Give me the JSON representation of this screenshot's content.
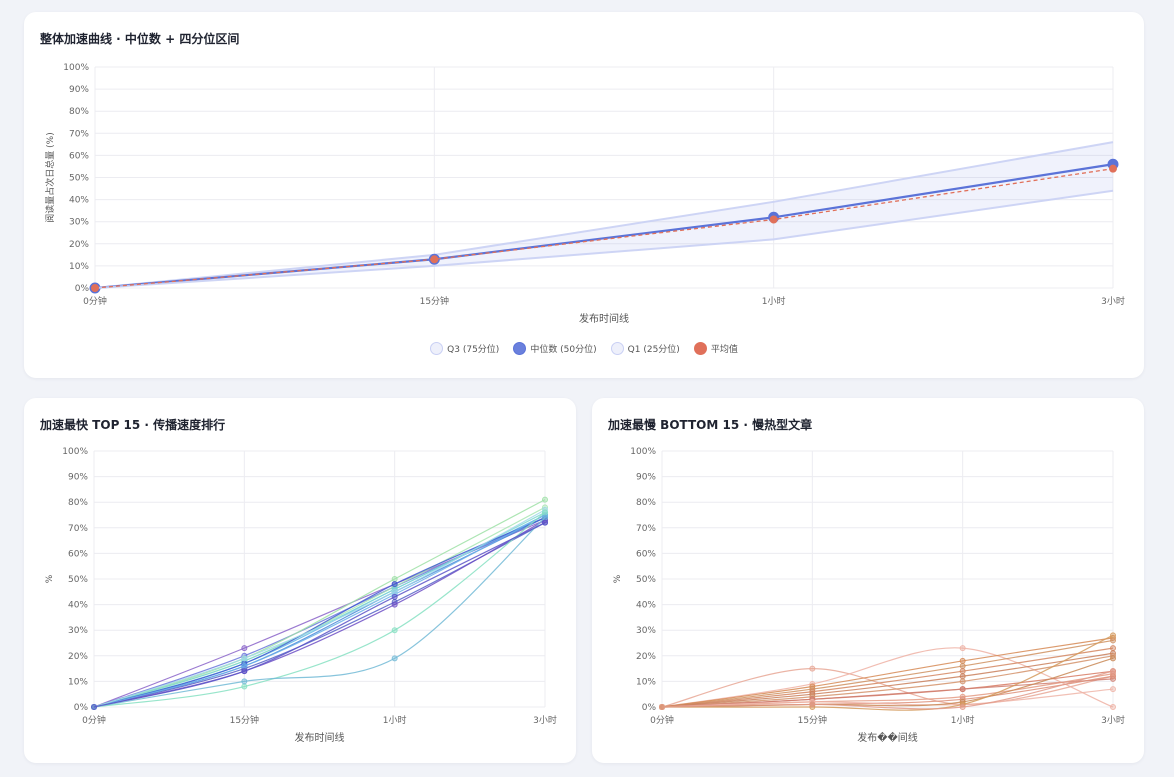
{
  "top_card": {
    "title": "整体加速曲线 · 中位数 + 四分位区间"
  },
  "left_card": {
    "title": "加速最快 TOP 15 · 传播速度排行"
  },
  "right_card": {
    "title": "加速最慢 BOTTOM 15 · 慢热型文章"
  },
  "legend": [
    {
      "label": "Q3 (75分位)",
      "color": "#c9d0f4",
      "fill": "#eef0fb"
    },
    {
      "label": "中位数 (50分位)",
      "color": "#5b73d8",
      "fill": "#6a80dd"
    },
    {
      "label": "Q1 (25分位)",
      "color": "#c9d0f4",
      "fill": "#eef0fb"
    },
    {
      "label": "平均值",
      "color": "#e0705a",
      "fill": "#e0705a"
    }
  ],
  "chart_data": [
    {
      "type": "line",
      "title": "整体加速曲线 · 中位数 + 四分位区间",
      "xlabel": "发布时间线",
      "ylabel": "阅读量占次日总量 (%)",
      "categories": [
        "0分钟",
        "15分钟",
        "1小时",
        "3小时"
      ],
      "y_ticks": [
        "0%",
        "10%",
        "20%",
        "30%",
        "40%",
        "50%",
        "60%",
        "70%",
        "80%",
        "90%",
        "100%"
      ],
      "ylim": [
        0,
        100
      ],
      "grid": true,
      "legend_position": "bottom",
      "series": [
        {
          "name": "Q3 (75分位)",
          "values": [
            0,
            15,
            39,
            66
          ],
          "color": "#c9d0f4"
        },
        {
          "name": "中位数 (50分位)",
          "values": [
            0,
            13,
            32,
            56
          ],
          "color": "#5b73d8"
        },
        {
          "name": "Q1 (25分位)",
          "values": [
            0,
            10,
            22,
            44
          ],
          "color": "#c9d0f4"
        },
        {
          "name": "平均值",
          "values": [
            0,
            13,
            31,
            54
          ],
          "color": "#e0705a"
        }
      ]
    },
    {
      "type": "line",
      "title": "加速最快 TOP 15 · 传播速度排行",
      "xlabel": "发布时间线",
      "ylabel": "%",
      "categories": [
        "0分钟",
        "15分钟",
        "1小时",
        "3小时"
      ],
      "y_ticks": [
        "0%",
        "10%",
        "20%",
        "30%",
        "40%",
        "50%",
        "60%",
        "70%",
        "80%",
        "90%",
        "100%"
      ],
      "ylim": [
        0,
        100
      ],
      "grid": true,
      "series": [
        {
          "values": [
            0,
            23,
            48,
            73
          ],
          "color": "#8a63c9"
        },
        {
          "values": [
            0,
            20,
            47,
            74
          ],
          "color": "#6a77dc"
        },
        {
          "values": [
            0,
            19,
            50,
            81
          ],
          "color": "#9ee0a6"
        },
        {
          "values": [
            0,
            18,
            47,
            78
          ],
          "color": "#a8e6b3"
        },
        {
          "values": [
            0,
            17,
            46,
            75
          ],
          "color": "#5fb8e6"
        },
        {
          "values": [
            0,
            16,
            45,
            74
          ],
          "color": "#4a88d8"
        },
        {
          "values": [
            0,
            15,
            41,
            72
          ],
          "color": "#5560c7"
        },
        {
          "values": [
            0,
            14,
            40,
            73
          ],
          "color": "#6d4fc6"
        },
        {
          "values": [
            0,
            18,
            46,
            76
          ],
          "color": "#7fd7d0"
        },
        {
          "values": [
            0,
            17,
            48,
            74
          ],
          "color": "#3f5bd0"
        },
        {
          "values": [
            0,
            16,
            44,
            75
          ],
          "color": "#6ab0ea"
        },
        {
          "values": [
            0,
            19,
            45,
            77
          ],
          "color": "#9fd8e8"
        },
        {
          "values": [
            0,
            8,
            30,
            76
          ],
          "color": "#86e0c2"
        },
        {
          "values": [
            0,
            10,
            19,
            74
          ],
          "color": "#72bad6"
        },
        {
          "values": [
            0,
            14,
            43,
            72
          ],
          "color": "#5b54c8"
        }
      ]
    },
    {
      "type": "line",
      "title": "加速最慢 BOTTOM 15 · 慢热型文章",
      "xlabel": "发布��间线",
      "ylabel": "%",
      "categories": [
        "0分钟",
        "15分钟",
        "1小时",
        "3小时"
      ],
      "y_ticks": [
        "0%",
        "10%",
        "20%",
        "30%",
        "40%",
        "50%",
        "60%",
        "70%",
        "80%",
        "90%",
        "100%"
      ],
      "ylim": [
        0,
        100
      ],
      "grid": true,
      "series": [
        {
          "values": [
            0,
            15,
            1,
            12
          ],
          "color": "#e8a795"
        },
        {
          "values": [
            0,
            9,
            23,
            0
          ],
          "color": "#eeb1a4"
        },
        {
          "values": [
            0,
            8,
            18,
            27
          ],
          "color": "#d68a55"
        },
        {
          "values": [
            0,
            7,
            16,
            26
          ],
          "color": "#cf9060"
        },
        {
          "values": [
            0,
            6,
            14,
            23
          ],
          "color": "#d48660"
        },
        {
          "values": [
            0,
            5,
            12,
            21
          ],
          "color": "#c97f5b"
        },
        {
          "values": [
            0,
            4,
            10,
            20
          ],
          "color": "#d3926a"
        },
        {
          "values": [
            0,
            3,
            7,
            14
          ],
          "color": "#d77a63"
        },
        {
          "values": [
            0,
            3,
            7,
            11
          ],
          "color": "#cf7e70"
        },
        {
          "values": [
            0,
            2,
            4,
            13
          ],
          "color": "#e49b84"
        },
        {
          "values": [
            0,
            1,
            3,
            12
          ],
          "color": "#dd8f79"
        },
        {
          "values": [
            0,
            2,
            1,
            7
          ],
          "color": "#eeb5a8"
        },
        {
          "values": [
            0,
            1,
            2,
            19
          ],
          "color": "#c98856"
        },
        {
          "values": [
            0,
            0,
            1,
            28
          ],
          "color": "#d49a5c"
        },
        {
          "values": [
            0,
            1,
            0,
            14
          ],
          "color": "#e29a8a"
        }
      ]
    }
  ]
}
